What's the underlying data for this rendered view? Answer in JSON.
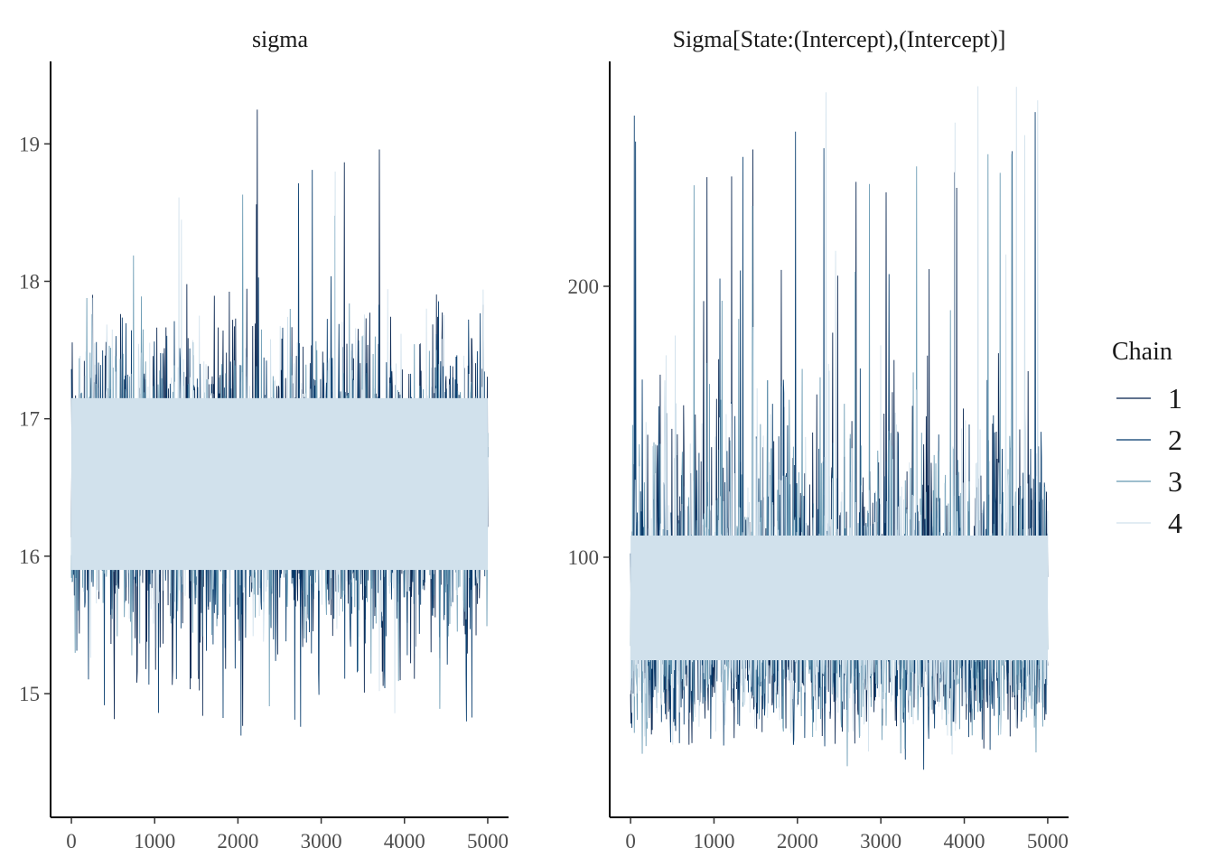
{
  "chart_data": {
    "type": "line",
    "chart_kind": "mcmc-trace",
    "legend": {
      "title": "Chain",
      "placement": "right",
      "entries": [
        {
          "label": "1",
          "color": "#011f4b"
        },
        {
          "label": "2",
          "color": "#03396c"
        },
        {
          "label": "3",
          "color": "#6497b1"
        },
        {
          "label": "4",
          "color": "#d1e1ec"
        }
      ]
    },
    "panels": [
      {
        "title": "sigma",
        "xlim": [
          -250,
          5250
        ],
        "ylim": [
          14.1,
          19.6
        ],
        "xticks": [
          0,
          1000,
          2000,
          3000,
          4000,
          5000
        ],
        "xtick_labels": [
          "0",
          "1000",
          "2000",
          "3000",
          "4000",
          "5000"
        ],
        "yticks": [
          15,
          16,
          17,
          18,
          19
        ],
        "ytick_labels": [
          "15",
          "16",
          "17",
          "18",
          "19"
        ],
        "x_range": [
          0,
          5000
        ],
        "core_band": [
          15.9,
          17.15
        ],
        "chains": [
          {
            "name": "1",
            "mean": 16.5,
            "sd": 0.55,
            "min": 14.3,
            "max": 19.35
          },
          {
            "name": "2",
            "mean": 16.5,
            "sd": 0.55,
            "min": 14.4,
            "max": 18.9
          },
          {
            "name": "3",
            "mean": 16.5,
            "sd": 0.5,
            "min": 14.35,
            "max": 18.85
          },
          {
            "name": "4",
            "mean": 16.5,
            "sd": 0.45,
            "min": 14.5,
            "max": 18.9
          }
        ]
      },
      {
        "title": "Sigma[State:(Intercept),(Intercept)]",
        "xlim": [
          -250,
          5250
        ],
        "ylim": [
          4,
          283
        ],
        "xticks": [
          0,
          1000,
          2000,
          3000,
          4000,
          5000
        ],
        "xtick_labels": [
          "0",
          "1000",
          "2000",
          "3000",
          "4000",
          "5000"
        ],
        "yticks": [
          100,
          200
        ],
        "ytick_labels": [
          "100",
          "200"
        ],
        "x_range": [
          0,
          5000
        ],
        "core_band": [
          62,
          108
        ],
        "chains": [
          {
            "name": "1",
            "mean": 80,
            "sd": 25,
            "min": 18,
            "max": 252
          },
          {
            "name": "2",
            "mean": 80,
            "sd": 25,
            "min": 20,
            "max": 265
          },
          {
            "name": "3",
            "mean": 80,
            "sd": 22,
            "min": 22,
            "max": 253
          },
          {
            "name": "4",
            "mean": 80,
            "sd": 20,
            "min": 22,
            "max": 275
          }
        ]
      }
    ]
  }
}
